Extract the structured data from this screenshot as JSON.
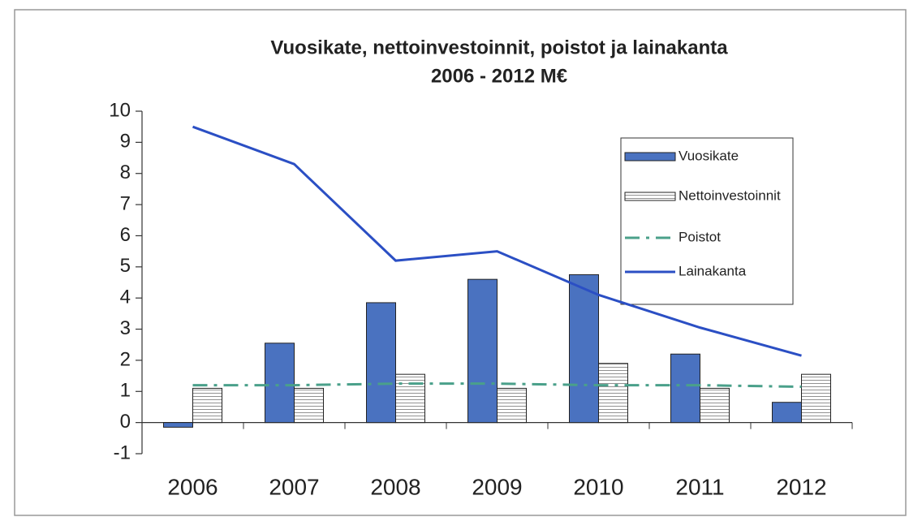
{
  "chart_data": {
    "type": "bar_line",
    "title": "Vuosikate, nettoinvestoinnit, poistot ja lainakanta",
    "subtitle": "2006 - 2012 M€",
    "categories": [
      "2006",
      "2007",
      "2008",
      "2009",
      "2010",
      "2011",
      "2012"
    ],
    "series": [
      {
        "name": "Vuosikate",
        "kind": "bar",
        "color": "#4a72c0",
        "values": [
          -0.15,
          2.55,
          3.85,
          4.6,
          4.75,
          2.2,
          0.65
        ]
      },
      {
        "name": "Nettoinvestoinnit",
        "kind": "hatched-bar",
        "color": "#ffffff",
        "values": [
          1.1,
          1.1,
          1.55,
          1.1,
          1.9,
          1.1,
          1.55
        ]
      },
      {
        "name": "Poistot",
        "kind": "dashdot-line",
        "color": "#4aa08a",
        "values": [
          1.2,
          1.2,
          1.25,
          1.25,
          1.2,
          1.2,
          1.15
        ]
      },
      {
        "name": "Lainakanta",
        "kind": "line",
        "color": "#2b4fc4",
        "values": [
          9.5,
          8.3,
          5.2,
          5.5,
          4.1,
          3.05,
          2.15
        ]
      }
    ],
    "ylim": [
      -1,
      10
    ],
    "yticks": [
      -1,
      0,
      1,
      2,
      3,
      4,
      5,
      6,
      7,
      8,
      9,
      10
    ]
  }
}
